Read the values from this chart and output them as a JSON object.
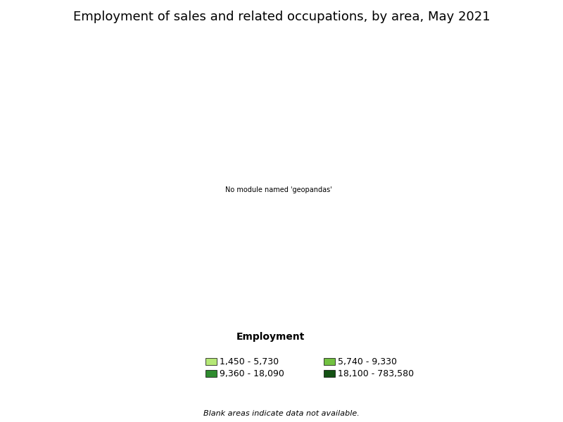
{
  "title": "Employment of sales and related occupations, by area, May 2021",
  "legend_title": "Employment",
  "legend_items": [
    {
      "label": "1,450 - 5,730",
      "color": "#b5e876"
    },
    {
      "label": "5,740 - 9,330",
      "color": "#72c141"
    },
    {
      "label": "9,360 - 18,090",
      "color": "#2e8b2e"
    },
    {
      "label": "18,100 - 783,580",
      "color": "#145214"
    }
  ],
  "no_data_color": "#b0906a",
  "border_color": "#000000",
  "background_color": "#ffffff",
  "footnote": "Blank areas indicate data not available.",
  "title_fontsize": 13,
  "legend_title_fontsize": 10,
  "legend_fontsize": 9,
  "footnote_fontsize": 8,
  "bins": [
    5730,
    9330,
    18090
  ],
  "bin_colors": [
    "#b5e876",
    "#72c141",
    "#2e8b2e",
    "#145214"
  ],
  "state_colors": {
    "WA": "#2e8b2e",
    "OR": "#2e8b2e",
    "CA": "#145214",
    "ID": "#b5e876",
    "NV": "#b0906a",
    "MT": "#b5e876",
    "WY": "#b5e876",
    "UT": "#2e8b2e",
    "CO": "#2e8b2e",
    "AZ": "#2e8b2e",
    "NM": "#72c141",
    "ND": "#b5e876",
    "SD": "#b5e876",
    "NE": "#72c141",
    "KS": "#72c141",
    "OK": "#72c141",
    "TX": "#145214",
    "MN": "#2e8b2e",
    "IA": "#72c141",
    "MO": "#2e8b2e",
    "AR": "#72c141",
    "LA": "#72c141",
    "WI": "#2e8b2e",
    "IL": "#145214",
    "MI": "#145214",
    "IN": "#2e8b2e",
    "KY": "#72c141",
    "TN": "#2e8b2e",
    "MS": "#72c141",
    "AL": "#72c141",
    "OH": "#145214",
    "WV": "#b5e876",
    "VA": "#2e8b2e",
    "NC": "#2e8b2e",
    "SC": "#72c141",
    "GA": "#145214",
    "FL": "#145214",
    "PA": "#145214",
    "NY": "#145214",
    "NJ": "#145214",
    "DE": "#b5e876",
    "MD": "#2e8b2e",
    "CT": "#72c141",
    "RI": "#b5e876",
    "MA": "#145214",
    "NH": "#b5e876",
    "VT": "#b5e876",
    "ME": "#b5e876",
    "AK": "#b5e876",
    "HI": "#b5e876"
  }
}
